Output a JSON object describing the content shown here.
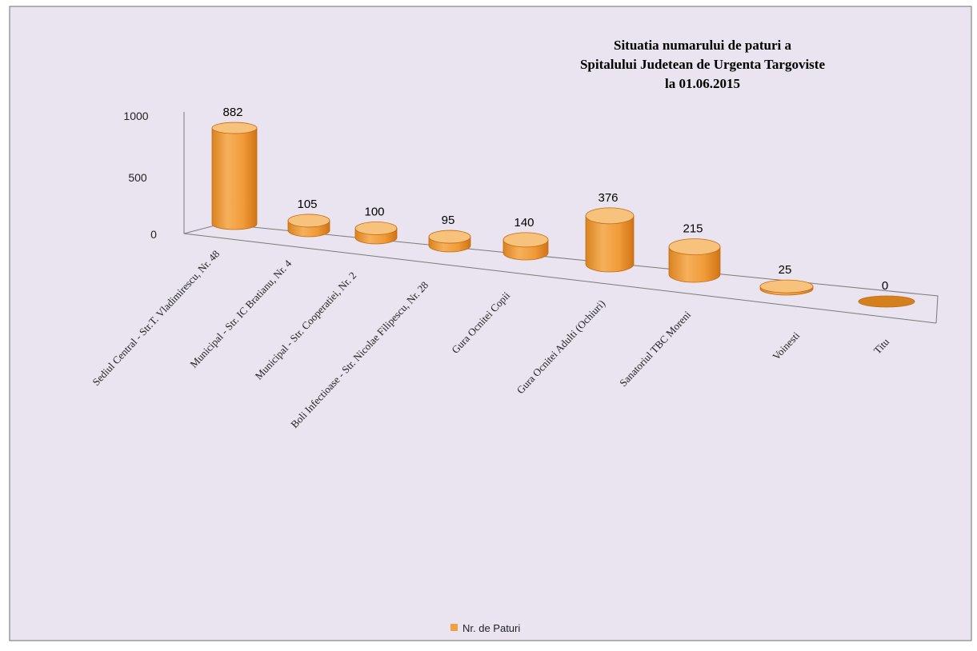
{
  "chart_data": {
    "type": "bar",
    "title_lines": [
      "Situatia numarului de paturi a",
      "Spitalului Judetean de Urgenta Targoviste",
      "la 01.06.2015"
    ],
    "categories": [
      "Sediul Central - Str.T. Vladimirescu, Nr. 48",
      "Municipal - Str. IC Bratianu, Nr. 4",
      "Municipal - Str. Cooperatiei, Nr. 2",
      "Boli Infectioase - Str. Nicolae Filipescu, Nr. 28",
      "Gura Ocnitei Copii",
      "Gura Ocnitei Adulti (Ochiuri)",
      "Sanatoriul TBC Moreni",
      "Voinesti",
      "Titu"
    ],
    "series": [
      {
        "name": "Nr. de Paturi",
        "values": [
          882,
          105,
          100,
          95,
          140,
          376,
          215,
          25,
          0
        ]
      }
    ],
    "value_labels": [
      "882",
      "105",
      "100",
      "95",
      "140",
      "376",
      "215",
      "25",
      "0"
    ],
    "y_ticks": [
      "0",
      "500",
      "1000"
    ],
    "ylim": [
      0,
      1000
    ],
    "grid": false,
    "legend_position": "bottom",
    "colors": {
      "background": "#e9e4ef",
      "border": "#6f6f6f",
      "bar_side": "#f0a040",
      "bar_top": "#f7c27c",
      "bar_edge": "#c46a14",
      "axis": "#7a7a7a"
    }
  }
}
